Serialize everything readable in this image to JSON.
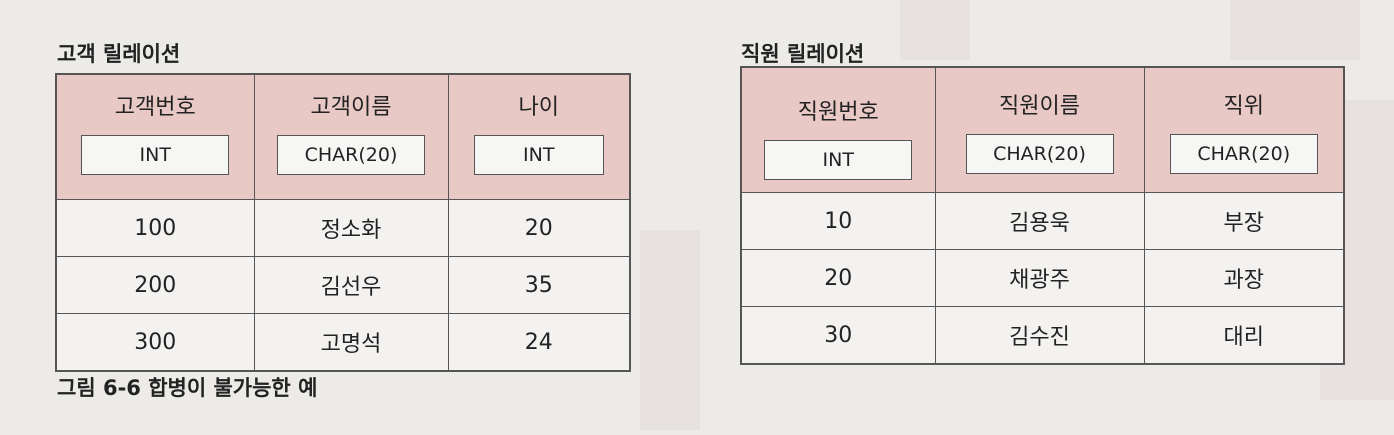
{
  "customer": {
    "title": "고객 릴레이션",
    "columns": [
      {
        "name": "고객번호",
        "type": "INT"
      },
      {
        "name": "고객이름",
        "type": "CHAR(20)"
      },
      {
        "name": "나이",
        "type": "INT"
      }
    ],
    "rows": [
      [
        "100",
        "정소화",
        "20"
      ],
      [
        "200",
        "김선우",
        "35"
      ],
      [
        "300",
        "고명석",
        "24"
      ]
    ]
  },
  "employee": {
    "title": "직원 릴레이션",
    "columns": [
      {
        "name": "직원번호",
        "type": "INT"
      },
      {
        "name": "직원이름",
        "type": "CHAR(20)"
      },
      {
        "name": "직위",
        "type": "CHAR(20)"
      }
    ],
    "rows": [
      [
        "10",
        "김용욱",
        "부장"
      ],
      [
        "20",
        "채광주",
        "과장"
      ],
      [
        "30",
        "김수진",
        "대리"
      ]
    ]
  },
  "caption": "그림 6-6  합병이 불가능한 예",
  "colors": {
    "header_bg": "#e8c9c6",
    "row_bg": "#f3f2f0",
    "border": "#555555",
    "page_bg": "#ecebe8"
  }
}
